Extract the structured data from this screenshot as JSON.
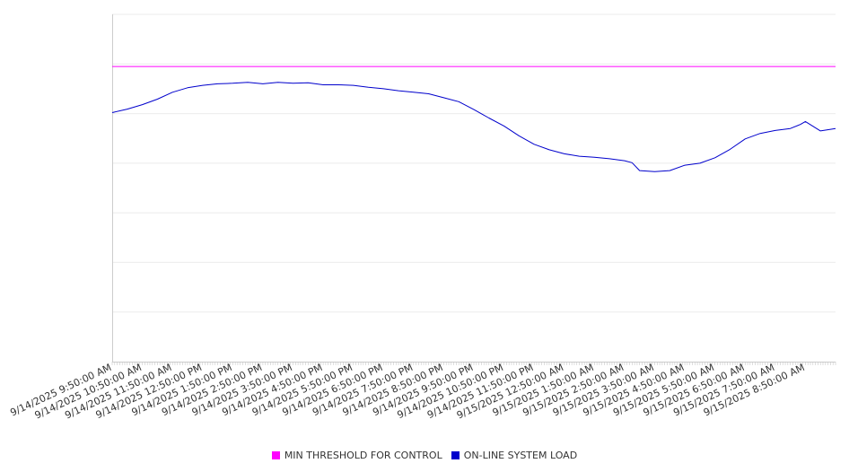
{
  "chart_data": {
    "type": "line",
    "title": "",
    "xlabel": "",
    "ylabel": "",
    "x_start": "9/14/2025 9:50:00 AM",
    "x_end": "9/15/2025 9:50:00 AM",
    "ylim": [
      0,
      7
    ],
    "grid": true,
    "legend_placement": "bottom",
    "tick_labels": [
      "9/14/2025 9:50:00 AM",
      "9/14/2025 10:50:00 AM",
      "9/14/2025 11:50:00 AM",
      "9/14/2025 12:50:00 PM",
      "9/14/2025 1:50:00 PM",
      "9/14/2025 2:50:00 PM",
      "9/14/2025 3:50:00 PM",
      "9/14/2025 4:50:00 PM",
      "9/14/2025 5:50:00 PM",
      "9/14/2025 6:50:00 PM",
      "9/14/2025 7:50:00 PM",
      "9/14/2025 8:50:00 PM",
      "9/14/2025 9:50:00 PM",
      "9/14/2025 10:50:00 PM",
      "9/14/2025 11:50:00 PM",
      "9/15/2025 12:50:00 AM",
      "9/15/2025 1:50:00 AM",
      "9/15/2025 2:50:00 AM",
      "9/15/2025 3:50:00 AM",
      "9/15/2025 4:50:00 AM",
      "9/15/2025 5:50:00 AM",
      "9/15/2025 6:50:00 AM",
      "9/15/2025 7:50:00 AM",
      "9/15/2025 8:50:00 AM"
    ],
    "series": [
      {
        "name": "MIN THRESHOLD FOR CONTROL",
        "color": "#ff00ff",
        "x": [
          "9/14/2025 9:50:00 AM",
          "9/15/2025 9:50:00 AM"
        ],
        "values": [
          5.95,
          5.95
        ]
      },
      {
        "name": "ON-LINE SYSTEM LOAD",
        "color": "#0000cc",
        "x": [
          "9/14/2025 9:50:00 AM",
          "9/14/2025 10:20:00 AM",
          "9/14/2025 10:50:00 AM",
          "9/14/2025 11:20:00 AM",
          "9/14/2025 11:50:00 AM",
          "9/14/2025 12:20:00 PM",
          "9/14/2025 12:50:00 PM",
          "9/14/2025 1:20:00 PM",
          "9/14/2025 1:50:00 PM",
          "9/14/2025 2:20:00 PM",
          "9/14/2025 2:50:00 PM",
          "9/14/2025 3:20:00 PM",
          "9/14/2025 3:50:00 PM",
          "9/14/2025 4:20:00 PM",
          "9/14/2025 4:50:00 PM",
          "9/14/2025 5:20:00 PM",
          "9/14/2025 5:50:00 PM",
          "9/14/2025 6:20:00 PM",
          "9/14/2025 6:50:00 PM",
          "9/14/2025 7:20:00 PM",
          "9/14/2025 7:50:00 PM",
          "9/14/2025 8:20:00 PM",
          "9/14/2025 8:50:00 PM",
          "9/14/2025 9:20:00 PM",
          "9/14/2025 9:50:00 PM",
          "9/14/2025 10:20:00 PM",
          "9/14/2025 10:50:00 PM",
          "9/14/2025 11:20:00 PM",
          "9/14/2025 11:50:00 PM",
          "9/15/2025 12:20:00 AM",
          "9/15/2025 12:50:00 AM",
          "9/15/2025 1:20:00 AM",
          "9/15/2025 1:50:00 AM",
          "9/15/2025 2:20:00 AM",
          "9/15/2025 2:50:00 AM",
          "9/15/2025 3:05:00 AM",
          "9/15/2025 3:20:00 AM",
          "9/15/2025 3:50:00 AM",
          "9/15/2025 4:20:00 AM",
          "9/15/2025 4:50:00 AM",
          "9/15/2025 5:20:00 AM",
          "9/15/2025 5:50:00 AM",
          "9/15/2025 6:20:00 AM",
          "9/15/2025 6:50:00 AM",
          "9/15/2025 7:20:00 AM",
          "9/15/2025 7:50:00 AM",
          "9/15/2025 8:20:00 AM",
          "9/15/2025 8:40:00 AM",
          "9/15/2025 8:50:00 AM",
          "9/15/2025 9:20:00 AM",
          "9/15/2025 9:50:00 AM"
        ],
        "values": [
          5.02,
          5.09,
          5.18,
          5.29,
          5.43,
          5.52,
          5.57,
          5.6,
          5.61,
          5.63,
          5.6,
          5.63,
          5.61,
          5.62,
          5.58,
          5.58,
          5.57,
          5.53,
          5.5,
          5.46,
          5.43,
          5.4,
          5.32,
          5.24,
          5.08,
          4.91,
          4.75,
          4.55,
          4.38,
          4.27,
          4.19,
          4.14,
          4.12,
          4.09,
          4.05,
          4.01,
          3.85,
          3.83,
          3.85,
          3.96,
          4.0,
          4.11,
          4.28,
          4.49,
          4.6,
          4.66,
          4.7,
          4.78,
          4.84,
          4.65,
          4.7
        ]
      }
    ]
  }
}
